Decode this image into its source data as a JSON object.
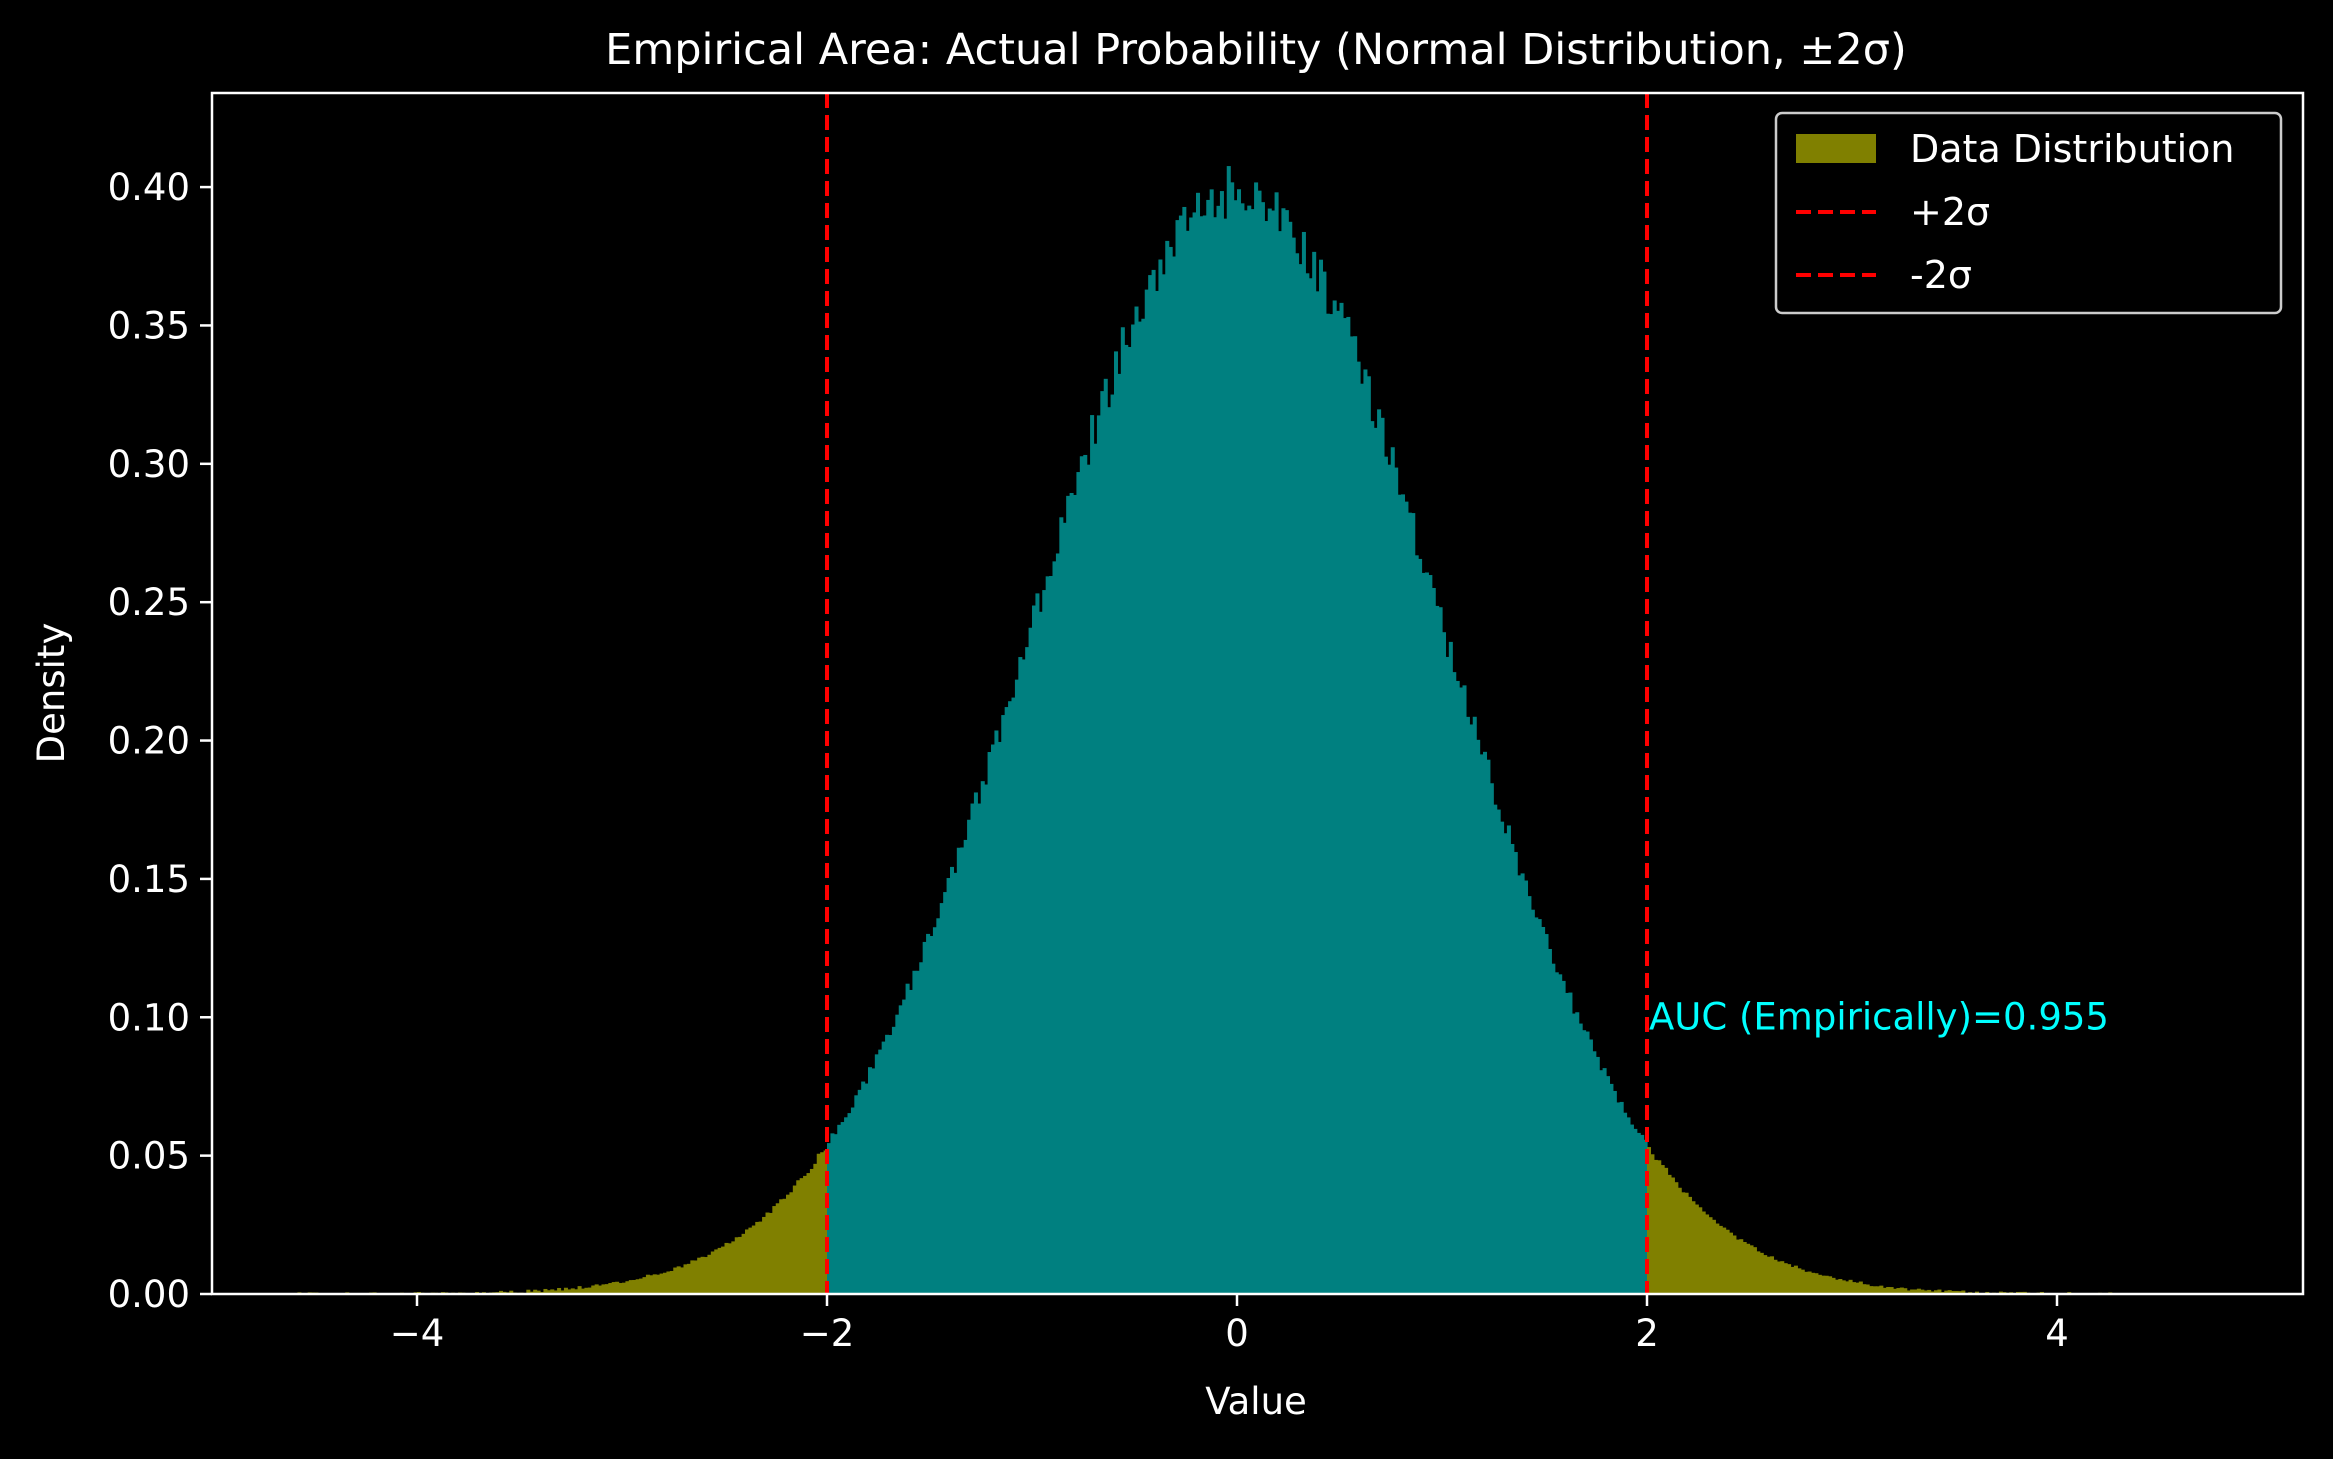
{
  "chart_data": {
    "type": "histogram",
    "title": "Empirical Area: Actual Probability (Normal Distribution, ±2σ)",
    "xlabel": "Value",
    "ylabel": "Density",
    "xlim": [
      -5.0,
      5.2
    ],
    "ylim": [
      0.0,
      0.434
    ],
    "x_ticks": [
      -4,
      -2,
      0,
      2,
      4
    ],
    "x_tick_labels": [
      "−4",
      "−2",
      "0",
      "2",
      "4"
    ],
    "y_ticks": [
      0.0,
      0.05,
      0.1,
      0.15,
      0.2,
      0.25,
      0.3,
      0.35,
      0.4
    ],
    "y_tick_labels": [
      "0.00",
      "0.05",
      "0.10",
      "0.15",
      "0.20",
      "0.25",
      "0.30",
      "0.35",
      "0.40"
    ],
    "grid": false,
    "series": [
      {
        "name": "Data Distribution",
        "kind": "histogram",
        "range": [
          -4.6,
          4.4
        ],
        "density_mean": 0.0,
        "density_std": 1.0,
        "color": "#808000",
        "highlight_range": [
          -2,
          2
        ],
        "highlight_color": "#008080"
      },
      {
        "name": "+2σ",
        "kind": "vline",
        "x": 2,
        "color": "#ff0000",
        "style": "dashed"
      },
      {
        "name": "-2σ",
        "kind": "vline",
        "x": -2,
        "color": "#ff0000",
        "style": "dashed"
      }
    ],
    "annotations": [
      {
        "text": "AUC (Empirically)=0.955",
        "x": 2,
        "y": 0.1,
        "color": "#00ffff"
      }
    ],
    "legend": {
      "position": "upper right",
      "entries": [
        {
          "label": "Data Distribution",
          "swatch": "patch",
          "color": "#808000"
        },
        {
          "label": "+2σ",
          "swatch": "dashed-line",
          "color": "#ff0000"
        },
        {
          "label": "-2σ",
          "swatch": "dashed-line",
          "color": "#ff0000"
        }
      ]
    },
    "colors": {
      "background": "#000000",
      "foreground": "#ffffff",
      "tail": "#808000",
      "center": "#008080",
      "vline": "#ff0000",
      "annotation": "#00ffff"
    }
  }
}
